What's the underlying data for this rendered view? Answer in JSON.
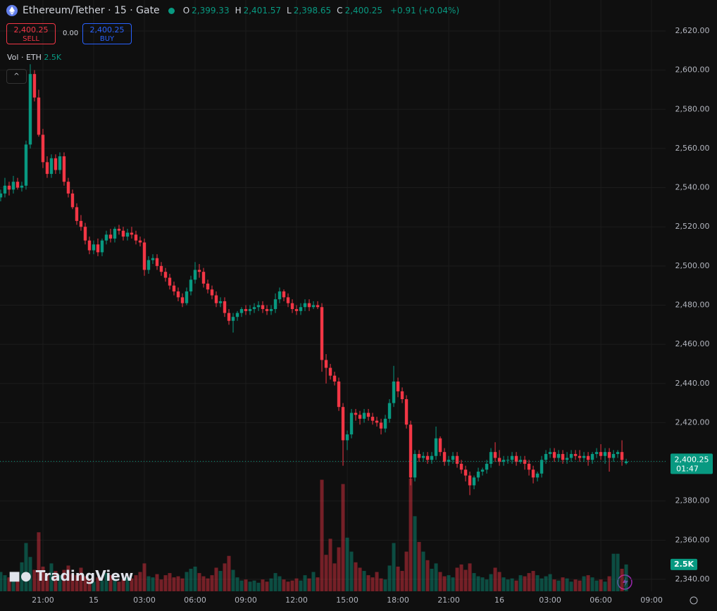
{
  "chart_data": {
    "type": "candlestick",
    "header": {
      "title": "Ethereum/Tether · 15 · Gate",
      "ohlc": [
        {
          "label": "O",
          "value": "2,399.33"
        },
        {
          "label": "H",
          "value": "2,401.57"
        },
        {
          "label": "L",
          "value": "2,398.65"
        },
        {
          "label": "C",
          "value": "2,400.25"
        }
      ],
      "change": "+0.91 (+0.04%)"
    },
    "trade": {
      "sell_price": "2,400.25",
      "sell_label": "SELL",
      "spread": "0.00",
      "buy_price": "2,400.25",
      "buy_label": "BUY"
    },
    "volume_title": "Vol · ETH",
    "watermark": "TradingView",
    "up_color": "#089981",
    "down_color": "#f23645",
    "xlim": [
      18.46,
      57.83
    ],
    "ylim": [
      2333.9,
      2635.8
    ],
    "xticks": [
      {
        "value": 21,
        "label": "21:00"
      },
      {
        "value": 24,
        "label": "15"
      },
      {
        "value": 27,
        "label": "03:00"
      },
      {
        "value": 30,
        "label": "06:00"
      },
      {
        "value": 33,
        "label": "09:00"
      },
      {
        "value": 36,
        "label": "12:00"
      },
      {
        "value": 39,
        "label": "15:00"
      },
      {
        "value": 42,
        "label": "18:00"
      },
      {
        "value": 45,
        "label": "21:00"
      },
      {
        "value": 48,
        "label": "16"
      },
      {
        "value": 51,
        "label": "03:00"
      },
      {
        "value": 54,
        "label": "06:00"
      },
      {
        "value": 57,
        "label": "09:00"
      }
    ],
    "yticks": [
      {
        "value": 2340,
        "label": "2,340.00"
      },
      {
        "value": 2360,
        "label": "2,360.00"
      },
      {
        "value": 2380,
        "label": "2,380.00"
      },
      {
        "value": 2400,
        "label": "2,400.00"
      },
      {
        "value": 2420,
        "label": "2,420.00"
      },
      {
        "value": 2440,
        "label": "2,440.00"
      },
      {
        "value": 2460,
        "label": "2,460.00"
      },
      {
        "value": 2480,
        "label": "2,480.00"
      },
      {
        "value": 2500,
        "label": "2,500.00"
      },
      {
        "value": 2520,
        "label": "2,520.00"
      },
      {
        "value": 2540,
        "label": "2,540.00"
      },
      {
        "value": 2560,
        "label": "2,560.00"
      },
      {
        "value": 2580,
        "label": "2,580.00"
      },
      {
        "value": 2600,
        "label": "2,600.00"
      },
      {
        "value": 2620,
        "label": "2,620.00"
      }
    ],
    "last_price": {
      "value": 2400.25,
      "label": "2,400.25"
    },
    "countdown": "01:47",
    "last_volume": {
      "value": 2500,
      "label": "2.5K"
    },
    "x": [
      18.5,
      18.75,
      19,
      19.25,
      19.5,
      19.75,
      20,
      20.25,
      20.5,
      20.75,
      21,
      21.25,
      21.5,
      21.75,
      22,
      22.25,
      22.5,
      22.75,
      23,
      23.25,
      23.5,
      23.75,
      24,
      24.25,
      24.5,
      24.75,
      25,
      25.25,
      25.5,
      25.75,
      26,
      26.25,
      26.5,
      26.75,
      27,
      27.25,
      27.5,
      27.75,
      28,
      28.25,
      28.5,
      28.75,
      29,
      29.25,
      29.5,
      29.75,
      30,
      30.25,
      30.5,
      30.75,
      31,
      31.25,
      31.5,
      31.75,
      32,
      32.25,
      32.5,
      32.75,
      33,
      33.25,
      33.5,
      33.75,
      34,
      34.25,
      34.5,
      34.75,
      35,
      35.25,
      35.5,
      35.75,
      36,
      36.25,
      36.5,
      36.75,
      37,
      37.25,
      37.5,
      37.75,
      38,
      38.25,
      38.5,
      38.75,
      39,
      39.25,
      39.5,
      39.75,
      40,
      40.25,
      40.5,
      40.75,
      41,
      41.25,
      41.5,
      41.75,
      42,
      42.25,
      42.5,
      42.75,
      43,
      43.25,
      43.5,
      43.75,
      44,
      44.25,
      44.5,
      44.75,
      45,
      45.25,
      45.5,
      45.75,
      46,
      46.25,
      46.5,
      46.75,
      47,
      47.25,
      47.5,
      47.75,
      48,
      48.25,
      48.5,
      48.75,
      49,
      49.25,
      49.5,
      49.75,
      50,
      50.25,
      50.5,
      50.75,
      51,
      51.25,
      51.5,
      51.75,
      52,
      52.25,
      52.5,
      52.75,
      53,
      53.25,
      53.5,
      53.75,
      54,
      54.25,
      54.5,
      54.75,
      55,
      55.25,
      55.5
    ],
    "open": [
      2535,
      2537,
      2541,
      2539,
      2543,
      2540,
      2541,
      2562,
      2598,
      2586,
      2567,
      2553,
      2547,
      2555,
      2549,
      2556,
      2543,
      2537,
      2530,
      2523,
      2520,
      2513,
      2508,
      2511,
      2507,
      2513,
      2516,
      2514,
      2519,
      2518,
      2515,
      2517,
      2516,
      2513,
      2512,
      2498,
      2503,
      2504,
      2500,
      2497,
      2494,
      2490,
      2487,
      2484,
      2481,
      2487,
      2493,
      2498,
      2497,
      2491,
      2488,
      2485,
      2481,
      2482,
      2476,
      2472,
      2474,
      2476,
      2478,
      2477,
      2478,
      2479,
      2480,
      2478,
      2477,
      2478,
      2483,
      2487,
      2484,
      2481,
      2478,
      2477,
      2479,
      2481,
      2479,
      2480,
      2479,
      2452,
      2448,
      2444,
      2441,
      2428,
      2411,
      2414,
      2425,
      2424,
      2422,
      2425,
      2423,
      2421,
      2420,
      2417,
      2422,
      2430,
      2441,
      2436,
      2432,
      2419,
      2392,
      2404,
      2402,
      2403,
      2401,
      2403,
      2412,
      2405,
      2400,
      2401,
      2403,
      2399,
      2396,
      2393,
      2388,
      2392,
      2395,
      2396,
      2399,
      2405,
      2402,
      2400,
      2401,
      2401,
      2403,
      2400,
      2401,
      2399,
      2396,
      2392,
      2394,
      2401,
      2404,
      2405,
      2402,
      2404,
      2401,
      2402,
      2404,
      2403,
      2402,
      2403,
      2401,
      2404,
      2405,
      2403,
      2405,
      2402,
      2404,
      2405,
      2399.33
    ],
    "high": [
      2539,
      2545,
      2543,
      2546,
      2545,
      2543,
      2564,
      2603,
      2600,
      2590,
      2570,
      2556,
      2557,
      2557,
      2558,
      2558,
      2545,
      2539,
      2532,
      2526,
      2522,
      2515,
      2513,
      2514,
      2514,
      2518,
      2519,
      2520,
      2521,
      2520,
      2519,
      2520,
      2518,
      2515,
      2514,
      2505,
      2506,
      2506,
      2502,
      2499,
      2496,
      2492,
      2489,
      2486,
      2489,
      2495,
      2502,
      2501,
      2499,
      2493,
      2490,
      2487,
      2484,
      2484,
      2478,
      2476,
      2477,
      2479,
      2480,
      2480,
      2481,
      2482,
      2482,
      2480,
      2480,
      2486,
      2489,
      2488,
      2486,
      2483,
      2480,
      2481,
      2483,
      2483,
      2482,
      2482,
      2481,
      2455,
      2450,
      2446,
      2443,
      2430,
      2416,
      2427,
      2427,
      2426,
      2427,
      2427,
      2425,
      2423,
      2422,
      2424,
      2432,
      2449,
      2443,
      2438,
      2434,
      2421,
      2406,
      2406,
      2405,
      2405,
      2405,
      2418,
      2413,
      2407,
      2403,
      2405,
      2405,
      2401,
      2398,
      2395,
      2393,
      2397,
      2397,
      2401,
      2407,
      2410,
      2406,
      2403,
      2403,
      2405,
      2405,
      2403,
      2403,
      2401,
      2398,
      2395,
      2403,
      2406,
      2407,
      2407,
      2406,
      2406,
      2405,
      2406,
      2406,
      2406,
      2405,
      2405,
      2405,
      2407,
      2409,
      2407,
      2407,
      2406,
      2406,
      2411,
      2401.57
    ],
    "low": [
      2533,
      2535,
      2536,
      2537,
      2539,
      2538,
      2539,
      2560,
      2584,
      2566,
      2550,
      2545,
      2545,
      2547,
      2547,
      2541,
      2535,
      2529,
      2521,
      2518,
      2511,
      2506,
      2506,
      2505,
      2505,
      2511,
      2512,
      2512,
      2516,
      2513,
      2513,
      2514,
      2511,
      2510,
      2495,
      2496,
      2501,
      2498,
      2495,
      2492,
      2488,
      2485,
      2482,
      2479,
      2480,
      2485,
      2491,
      2494,
      2489,
      2486,
      2483,
      2479,
      2479,
      2474,
      2470,
      2466,
      2472,
      2474,
      2475,
      2475,
      2476,
      2477,
      2476,
      2475,
      2475,
      2476,
      2481,
      2482,
      2479,
      2476,
      2475,
      2475,
      2477,
      2477,
      2478,
      2478,
      2446,
      2440,
      2442,
      2439,
      2426,
      2398,
      2406,
      2412,
      2421,
      2419,
      2420,
      2421,
      2419,
      2418,
      2414,
      2415,
      2420,
      2428,
      2433,
      2430,
      2417,
      2388,
      2390,
      2400,
      2400,
      2399,
      2399,
      2401,
      2403,
      2398,
      2398,
      2399,
      2397,
      2394,
      2390,
      2383,
      2386,
      2390,
      2393,
      2394,
      2397,
      2400,
      2398,
      2398,
      2399,
      2399,
      2398,
      2399,
      2396,
      2393,
      2389,
      2390,
      2392,
      2399,
      2402,
      2400,
      2400,
      2399,
      2399,
      2400,
      2401,
      2400,
      2400,
      2398,
      2399,
      2402,
      2401,
      2399,
      2395,
      2400,
      2402,
      2398,
      2398.65
    ],
    "close": [
      2537,
      2541,
      2539,
      2543,
      2540,
      2541,
      2562,
      2598,
      2586,
      2567,
      2553,
      2547,
      2555,
      2549,
      2556,
      2543,
      2537,
      2530,
      2523,
      2520,
      2513,
      2508,
      2511,
      2507,
      2513,
      2516,
      2514,
      2519,
      2518,
      2515,
      2517,
      2516,
      2513,
      2512,
      2498,
      2503,
      2504,
      2500,
      2497,
      2494,
      2490,
      2487,
      2484,
      2481,
      2487,
      2493,
      2498,
      2497,
      2491,
      2488,
      2485,
      2481,
      2482,
      2476,
      2472,
      2474,
      2476,
      2478,
      2477,
      2478,
      2479,
      2480,
      2478,
      2477,
      2478,
      2483,
      2487,
      2484,
      2481,
      2478,
      2477,
      2479,
      2481,
      2479,
      2480,
      2479,
      2452,
      2448,
      2444,
      2441,
      2428,
      2411,
      2414,
      2425,
      2424,
      2422,
      2425,
      2423,
      2421,
      2420,
      2417,
      2422,
      2430,
      2441,
      2436,
      2432,
      2419,
      2392,
      2404,
      2402,
      2403,
      2401,
      2403,
      2412,
      2405,
      2400,
      2401,
      2403,
      2399,
      2396,
      2393,
      2388,
      2392,
      2395,
      2396,
      2399,
      2405,
      2402,
      2400,
      2401,
      2401,
      2403,
      2400,
      2401,
      2399,
      2396,
      2392,
      2394,
      2401,
      2404,
      2405,
      2402,
      2404,
      2401,
      2402,
      2404,
      2403,
      2402,
      2403,
      2401,
      2404,
      2405,
      2403,
      2405,
      2402,
      2404,
      2405,
      2401,
      2400.25
    ],
    "volume": [
      1800,
      1500,
      1300,
      1100,
      1600,
      2700,
      4500,
      3200,
      2000,
      5500,
      2300,
      1700,
      2600,
      1900,
      1500,
      2000,
      2400,
      1600,
      1500,
      2200,
      1400,
      1100,
      900,
      1300,
      1000,
      1700,
      1500,
      1200,
      900,
      1100,
      1300,
      1200,
      1500,
      1800,
      2600,
      1400,
      1300,
      1600,
      1100,
      1500,
      1700,
      1300,
      1400,
      1200,
      1800,
      2100,
      2300,
      1700,
      1400,
      1200,
      1500,
      2200,
      1900,
      2600,
      3300,
      2000,
      1300,
      1000,
      1100,
      900,
      1000,
      800,
      1100,
      900,
      1200,
      1700,
      1400,
      1100,
      900,
      1000,
      1200,
      1000,
      1500,
      1200,
      1800,
      1300,
      10400,
      3400,
      4900,
      2600,
      4100,
      10000,
      5000,
      3700,
      2700,
      2200,
      1900,
      1500,
      1300,
      1800,
      1200,
      1100,
      2400,
      4500,
      2300,
      1900,
      3700,
      10500,
      7000,
      4600,
      3700,
      2900,
      2100,
      2600,
      1800,
      1400,
      1500,
      1300,
      2200,
      2500,
      2000,
      2600,
      1700,
      1400,
      1300,
      1100,
      1600,
      2200,
      1800,
      1300,
      1100,
      1200,
      1000,
      1500,
      1400,
      1700,
      1900,
      1500,
      1200,
      1400,
      1600,
      1100,
      1000,
      1300,
      1200,
      900,
      1100,
      1000,
      1400,
      1500,
      1300,
      1000,
      1100,
      900,
      1400,
      3500,
      3500,
      2100,
      2500
    ]
  }
}
